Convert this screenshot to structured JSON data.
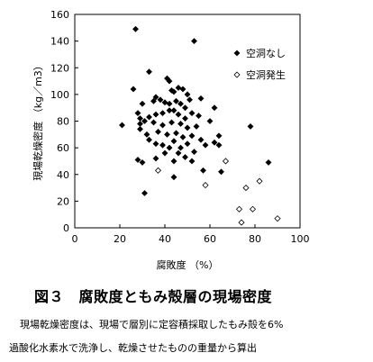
{
  "chart_data": {
    "type": "scatter",
    "xlabel": "腐敗度 （%）",
    "ylabel": "現場乾燥密度 （kg／m3）",
    "xlim": [
      0,
      100
    ],
    "ylim": [
      0,
      160
    ],
    "x_ticks": [
      "0",
      "20",
      "40",
      "60",
      "80",
      "100"
    ],
    "y_ticks": [
      "0",
      "20",
      "40",
      "60",
      "80",
      "100",
      "120",
      "140",
      "160"
    ],
    "legend_position": "top-right",
    "grid": false,
    "series": [
      {
        "name": "空洞なし",
        "marker": "filled-diamond",
        "points": [
          [
            27,
            149
          ],
          [
            53,
            140
          ],
          [
            33,
            117
          ],
          [
            41,
            112
          ],
          [
            42,
            110
          ],
          [
            26,
            104
          ],
          [
            43,
            103
          ],
          [
            46,
            105
          ],
          [
            48,
            104
          ],
          [
            44,
            102
          ],
          [
            30,
            93
          ],
          [
            35,
            95
          ],
          [
            36,
            98
          ],
          [
            38,
            96
          ],
          [
            40,
            94
          ],
          [
            42,
            93
          ],
          [
            45,
            95
          ],
          [
            47,
            93
          ],
          [
            49,
            90
          ],
          [
            51,
            96
          ],
          [
            56,
            97
          ],
          [
            62,
            90
          ],
          [
            28,
            86
          ],
          [
            29,
            82
          ],
          [
            31,
            80
          ],
          [
            33,
            83
          ],
          [
            36,
            85
          ],
          [
            39,
            86
          ],
          [
            44,
            88
          ],
          [
            46,
            85
          ],
          [
            49,
            82
          ],
          [
            52,
            86
          ],
          [
            55,
            84
          ],
          [
            60,
            80
          ],
          [
            21,
            77
          ],
          [
            29,
            78
          ],
          [
            35,
            79
          ],
          [
            39,
            77
          ],
          [
            43,
            79
          ],
          [
            47,
            78
          ],
          [
            50,
            75
          ],
          [
            54,
            76
          ],
          [
            32,
            70
          ],
          [
            37,
            72
          ],
          [
            41,
            70
          ],
          [
            45,
            71
          ],
          [
            48,
            68
          ],
          [
            52,
            69
          ],
          [
            56,
            66
          ],
          [
            62,
            64
          ],
          [
            64,
            69
          ],
          [
            29,
            74
          ],
          [
            33,
            66
          ],
          [
            36,
            63
          ],
          [
            39,
            62
          ],
          [
            42,
            60
          ],
          [
            44,
            65
          ],
          [
            47,
            60
          ],
          [
            50,
            63
          ],
          [
            53,
            57
          ],
          [
            58,
            62
          ],
          [
            64,
            62
          ],
          [
            30,
            49
          ],
          [
            36,
            52
          ],
          [
            40,
            56
          ],
          [
            44,
            50
          ],
          [
            46,
            56
          ],
          [
            49,
            53
          ],
          [
            52,
            50
          ],
          [
            57,
            43
          ],
          [
            28,
            51
          ],
          [
            44,
            38
          ],
          [
            31,
            26
          ],
          [
            65,
            42
          ],
          [
            78,
            76
          ],
          [
            86,
            49
          ],
          [
            42,
            88
          ],
          [
            50,
            100
          ]
        ]
      },
      {
        "name": "空洞発生",
        "marker": "open-diamond",
        "points": [
          [
            73,
            14
          ],
          [
            74,
            4
          ],
          [
            76,
            30
          ],
          [
            79,
            14
          ],
          [
            82,
            35
          ],
          [
            90,
            7
          ],
          [
            58,
            32
          ],
          [
            67,
            50
          ],
          [
            37,
            43
          ]
        ]
      }
    ]
  },
  "caption": {
    "title": "図３　腐敗度ともみ殻層の現場密度",
    "note_line1": "現場乾燥密度は、現場で層別に定容積採取したもみ殻を6%",
    "note_line2": "過酸化水素水で洗浄し、乾燥させたものの重量から算出"
  }
}
